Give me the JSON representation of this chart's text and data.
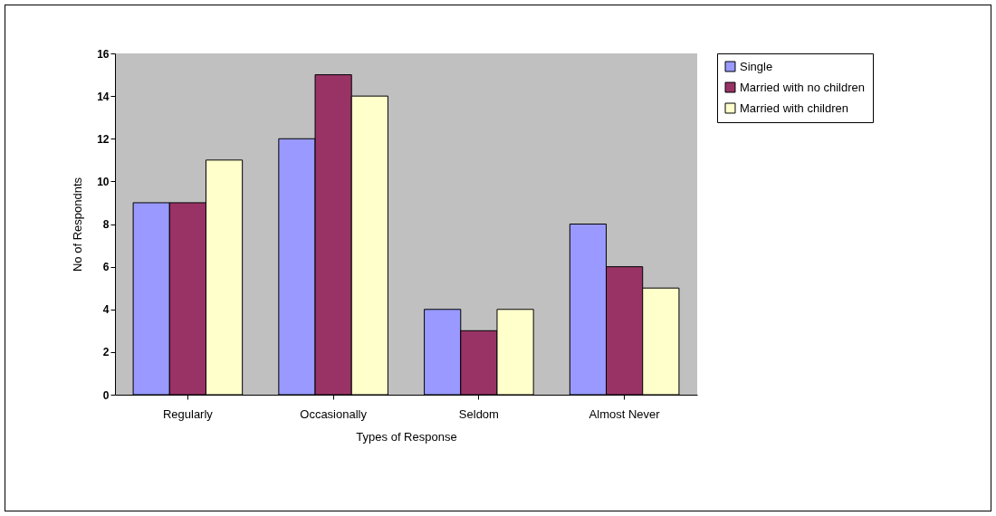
{
  "chart_data": {
    "type": "bar",
    "xlabel": "Types of Response",
    "ylabel": "No of Respondnts",
    "categories": [
      "Regularly",
      "Occasionally",
      "Seldom",
      "Almost Never"
    ],
    "series": [
      {
        "name": "Single",
        "color": "#9999ff",
        "values": [
          9,
          12,
          4,
          8
        ]
      },
      {
        "name": "Married with no children",
        "color": "#993366",
        "values": [
          9,
          15,
          3,
          6
        ]
      },
      {
        "name": "Married with children",
        "color": "#ffffcc",
        "values": [
          11,
          14,
          4,
          5
        ]
      }
    ],
    "ylim": [
      0,
      16
    ],
    "yticks": [
      0,
      2,
      4,
      6,
      8,
      10,
      12,
      14,
      16
    ],
    "grid": false,
    "legend": "right"
  }
}
